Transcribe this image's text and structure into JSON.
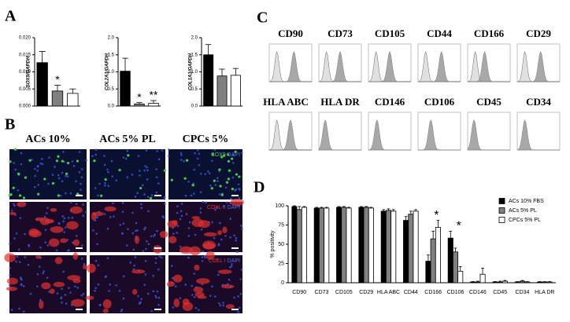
{
  "panels": {
    "a": "A",
    "b": "B",
    "c": "C",
    "d": "D"
  },
  "chart_data": [
    {
      "type": "bar",
      "ylabel": "SOX9/GAPDH",
      "categories": [
        null,
        null,
        null
      ],
      "values": [
        0.0127,
        0.0044,
        0.0037
      ],
      "errors": [
        0.0033,
        0.0017,
        0.0013
      ],
      "colors": [
        "#000000",
        "#808080",
        "#ffffff"
      ],
      "annotations": [
        null,
        "*",
        null
      ],
      "ylim": [
        0,
        0.02
      ],
      "yticks": [
        {
          "value": 0,
          "label": "0.000"
        },
        {
          "value": 0.005,
          "label": "0.005"
        },
        {
          "value": 0.01,
          "label": "0.010"
        },
        {
          "value": 0.015,
          "label": "0.015"
        },
        {
          "value": 0.02,
          "label": "0.020"
        }
      ]
    },
    {
      "type": "bar",
      "ylabel": "COL2A1/GAPDH",
      "categories": [
        null,
        null,
        null
      ],
      "values": [
        1.02,
        0.06,
        0.08
      ],
      "errors": [
        0.38,
        0.04,
        0.08
      ],
      "colors": [
        "#000000",
        "#808080",
        "#ffffff"
      ],
      "annotations": [
        null,
        "*",
        "**"
      ],
      "ylim": [
        0,
        2
      ],
      "yticks": [
        {
          "value": 0,
          "label": "0.0"
        },
        {
          "value": 0.5,
          "label": "0.5"
        },
        {
          "value": 1,
          "label": "1.0"
        },
        {
          "value": 1.5,
          "label": "1.5"
        },
        {
          "value": 2,
          "label": "2.0"
        }
      ]
    },
    {
      "type": "bar",
      "ylabel": "COL1A1/GAPDH",
      "categories": [
        null,
        null,
        null
      ],
      "values": [
        1.5,
        0.88,
        0.9
      ],
      "errors": [
        0.3,
        0.2,
        0.2
      ],
      "colors": [
        "#000000",
        "#808080",
        "#ffffff"
      ],
      "annotations": [
        null,
        null,
        null
      ],
      "ylim": [
        0,
        2
      ],
      "yticks": [
        {
          "value": 0,
          "label": "0.0"
        },
        {
          "value": 0.5,
          "label": "0.5"
        },
        {
          "value": 1,
          "label": "1.0"
        },
        {
          "value": 1.5,
          "label": "1.5"
        },
        {
          "value": 2,
          "label": "2.0"
        }
      ]
    },
    {
      "type": "bar",
      "ylabel": "% positivity",
      "categories": [
        "CD90",
        "CD73",
        "CD105",
        "CD29",
        "HLA ABC",
        "CD44",
        "CD166",
        "CD106",
        "CD146",
        "CD45",
        "CD34",
        "HLA DR"
      ],
      "series": [
        {
          "name": "ACs 10% FBS",
          "color": "#000000",
          "values": [
            99,
            97,
            98,
            98,
            93,
            81,
            28,
            58,
            1,
            1,
            1,
            1
          ],
          "errors": [
            1,
            1,
            1,
            1,
            2,
            5,
            8,
            9,
            0.5,
            0.5,
            0.5,
            0.5
          ]
        },
        {
          "name": "ACs 5% PL",
          "color": "#808080",
          "values": [
            95,
            97,
            98,
            98,
            94,
            89,
            57,
            40,
            1,
            1,
            2,
            1
          ],
          "errors": [
            4,
            1,
            1,
            1,
            2,
            4,
            10,
            5,
            1,
            1,
            1,
            0.5
          ]
        },
        {
          "name": "CPCs 5% PL",
          "color": "#ffffff",
          "values": [
            98,
            97,
            97,
            97,
            93,
            93,
            72,
            15,
            11,
            2,
            1,
            1
          ],
          "errors": [
            1,
            1,
            1,
            1,
            2,
            2,
            9,
            6,
            8,
            1,
            0.5,
            0.5
          ]
        }
      ],
      "annotations": [
        null,
        null,
        null,
        null,
        null,
        null,
        "*",
        "*",
        null,
        null,
        null,
        null
      ],
      "ylim": [
        0,
        100
      ],
      "yticks": [
        0,
        25,
        50,
        75,
        100
      ],
      "legend": "upper right"
    }
  ],
  "panel_b": {
    "columns": [
      "ACs 10%",
      "ACs 5% PL",
      "CPCs 5%"
    ],
    "rows": [
      {
        "stain": "SOX9",
        "counter": "DAPI"
      },
      {
        "stain": "COLL II",
        "counter": "DAPI"
      },
      {
        "stain": "COLL I",
        "counter": "DAPI"
      }
    ]
  },
  "panel_c": {
    "markers": [
      "CD90",
      "CD73",
      "CD105",
      "CD44",
      "CD166",
      "CD29",
      "HLA ABC",
      "HLA DR",
      "CD146",
      "CD106",
      "CD45",
      "CD34"
    ]
  }
}
